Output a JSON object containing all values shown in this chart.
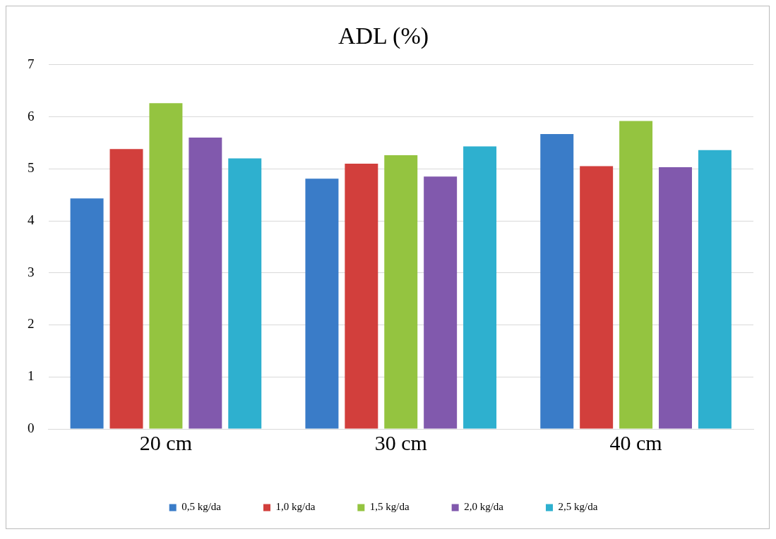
{
  "chart_data": {
    "type": "bar",
    "title": "ADL (%)",
    "categories": [
      "20 cm",
      "30 cm",
      "40 cm"
    ],
    "series": [
      {
        "name": "0,5 kg/da",
        "color": "#3a7cc8",
        "values": [
          4.43,
          4.81,
          5.67
        ]
      },
      {
        "name": "1,0 kg/da",
        "color": "#d23f3c",
        "values": [
          5.38,
          5.1,
          5.05
        ]
      },
      {
        "name": "1,5 kg/da",
        "color": "#94c440",
        "values": [
          6.26,
          5.26,
          5.92
        ]
      },
      {
        "name": "2,0 kg/da",
        "color": "#8159ad",
        "values": [
          5.6,
          4.85,
          5.03
        ]
      },
      {
        "name": "2,5 kg/da",
        "color": "#2eb0cf",
        "values": [
          5.2,
          5.43,
          5.36
        ]
      }
    ],
    "ylim": [
      0,
      7
    ],
    "yticks": [
      0,
      1,
      2,
      3,
      4,
      5,
      6,
      7
    ],
    "grid": "y",
    "legend": "bottom"
  }
}
